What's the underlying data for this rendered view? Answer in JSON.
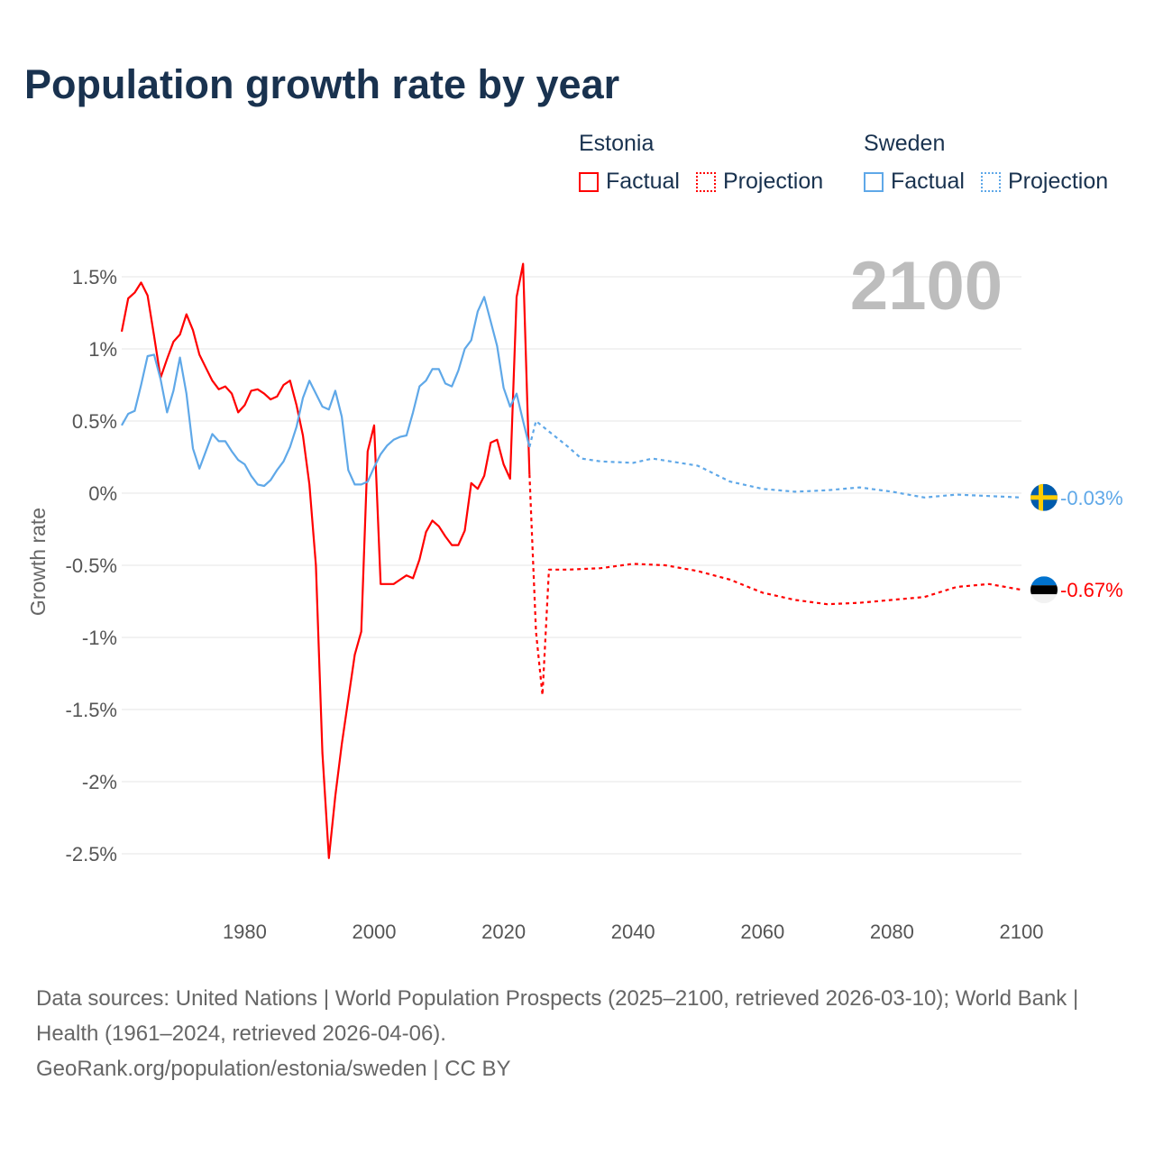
{
  "title": "Population growth rate by year",
  "legend": {
    "groups": [
      {
        "name": "Estonia",
        "color": "#ff0000",
        "factual": "Factual",
        "projection": "Projection"
      },
      {
        "name": "Sweden",
        "color": "#5fa8e8",
        "factual": "Factual",
        "projection": "Projection"
      }
    ]
  },
  "year_display": "2100",
  "footer": {
    "sources": "Data sources: United Nations | World Population Prospects (2025–2100, retrieved 2026-03-10); World Bank | Health (1961–2024, retrieved 2026-04-06).",
    "link": "GeoRank.org/population/estonia/sweden | CC BY"
  },
  "chart_data": {
    "type": "line",
    "title": "Population growth rate by year",
    "xlabel": "",
    "ylabel": "Growth rate",
    "xlim": [
      1961,
      2100
    ],
    "ylim": [
      -2.9,
      1.75
    ],
    "x_ticks": [
      1980,
      2000,
      2020,
      2040,
      2060,
      2080,
      2100
    ],
    "y_ticks": [
      1.5,
      1,
      0.5,
      0,
      -0.5,
      -1,
      -1.5,
      -2,
      -2.5
    ],
    "y_tick_labels": [
      "1.5%",
      "1%",
      "0.5%",
      "0%",
      "-0.5%",
      "-1%",
      "-1.5%",
      "-2%",
      "-2.5%"
    ],
    "grid": true,
    "legend_position": "top-right",
    "series": [
      {
        "name": "Estonia",
        "kind": "Factual",
        "color": "#ff0000",
        "x_start": 1961,
        "values": [
          1.12,
          1.35,
          1.39,
          1.46,
          1.37,
          1.09,
          0.8,
          0.93,
          1.05,
          1.1,
          1.24,
          1.13,
          0.96,
          0.87,
          0.78,
          0.72,
          0.74,
          0.69,
          0.56,
          0.61,
          0.71,
          0.72,
          0.69,
          0.65,
          0.67,
          0.75,
          0.78,
          0.61,
          0.4,
          0.06,
          -0.5,
          -1.8,
          -2.53,
          -2.1,
          -1.74,
          -1.43,
          -1.12,
          -0.96,
          0.29,
          0.47,
          -0.63,
          -0.63,
          -0.63,
          -0.6,
          -0.57,
          -0.59,
          -0.46,
          -0.27,
          -0.19,
          -0.23,
          -0.3,
          -0.36,
          -0.36,
          -0.26,
          0.07,
          0.03,
          0.12,
          0.35,
          0.37,
          0.2,
          0.1,
          1.36,
          1.59,
          0.13
        ]
      },
      {
        "name": "Estonia",
        "kind": "Projection",
        "color": "#ff0000",
        "x": [
          2024,
          2025,
          2026,
          2027,
          2030,
          2035,
          2040,
          2045,
          2050,
          2055,
          2060,
          2065,
          2070,
          2075,
          2080,
          2085,
          2090,
          2095,
          2100
        ],
        "values": [
          0.13,
          -0.96,
          -1.4,
          -0.53,
          -0.53,
          -0.52,
          -0.49,
          -0.5,
          -0.54,
          -0.6,
          -0.69,
          -0.74,
          -0.77,
          -0.76,
          -0.74,
          -0.72,
          -0.65,
          -0.63,
          -0.67
        ]
      },
      {
        "name": "Sweden",
        "kind": "Factual",
        "color": "#5fa8e8",
        "x_start": 1961,
        "values": [
          0.47,
          0.55,
          0.57,
          0.75,
          0.95,
          0.96,
          0.79,
          0.56,
          0.71,
          0.94,
          0.69,
          0.31,
          0.17,
          0.29,
          0.41,
          0.36,
          0.36,
          0.29,
          0.23,
          0.2,
          0.12,
          0.06,
          0.05,
          0.09,
          0.16,
          0.22,
          0.32,
          0.46,
          0.66,
          0.78,
          0.69,
          0.6,
          0.58,
          0.71,
          0.53,
          0.16,
          0.06,
          0.06,
          0.08,
          0.18,
          0.27,
          0.33,
          0.37,
          0.39,
          0.4,
          0.56,
          0.74,
          0.78,
          0.86,
          0.86,
          0.76,
          0.74,
          0.85,
          1.0,
          1.06,
          1.26,
          1.36,
          1.19,
          1.02,
          0.73,
          0.6,
          0.69,
          0.5,
          0.32
        ]
      },
      {
        "name": "Sweden",
        "kind": "Projection",
        "color": "#5fa8e8",
        "x": [
          2024,
          2025,
          2030,
          2032,
          2035,
          2040,
          2043,
          2050,
          2055,
          2060,
          2065,
          2070,
          2075,
          2080,
          2085,
          2090,
          2095,
          2100
        ],
        "values": [
          0.32,
          0.5,
          0.32,
          0.24,
          0.22,
          0.21,
          0.24,
          0.19,
          0.08,
          0.03,
          0.01,
          0.02,
          0.04,
          0.01,
          -0.03,
          -0.01,
          -0.02,
          -0.03
        ]
      }
    ],
    "end_labels": [
      {
        "country": "Sweden",
        "value": -0.03,
        "text": "-0.03%",
        "color": "#5fa8e8"
      },
      {
        "country": "Estonia",
        "value": -0.67,
        "text": "-0.67%",
        "color": "#ff0000"
      }
    ]
  }
}
